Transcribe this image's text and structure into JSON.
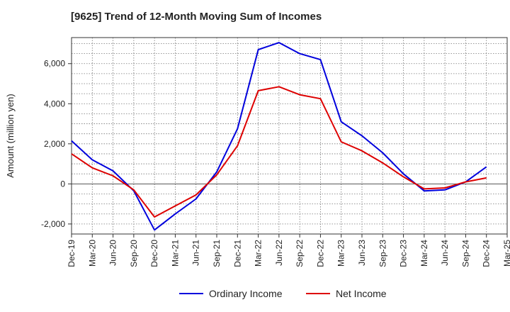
{
  "chart_data": {
    "type": "line",
    "title": "[9625]  Trend of 12-Month Moving Sum of Incomes",
    "xlabel": "",
    "ylabel": "Amount (million yen)",
    "ylim": [
      -2500,
      7300
    ],
    "yticks": [
      -2000,
      0,
      2000,
      4000,
      6000
    ],
    "ytick_labels": [
      "-2,000",
      "0",
      "2,000",
      "4,000",
      "6,000"
    ],
    "categories": [
      "Dec-19",
      "Mar-20",
      "Jun-20",
      "Sep-20",
      "Dec-20",
      "Mar-21",
      "Jun-21",
      "Sep-21",
      "Dec-21",
      "Mar-22",
      "Jun-22",
      "Sep-22",
      "Dec-22",
      "Mar-23",
      "Jun-23",
      "Sep-23",
      "Dec-23",
      "Mar-24",
      "Jun-24",
      "Sep-24",
      "Dec-24",
      "Mar-25"
    ],
    "grid": true,
    "legend_position": "bottom",
    "series": [
      {
        "name": "Ordinary Income",
        "color": "#0000dd",
        "values": [
          2150,
          1200,
          650,
          -350,
          -2300,
          -1500,
          -750,
          600,
          2750,
          6700,
          7050,
          6500,
          6200,
          3100,
          2400,
          1550,
          500,
          -350,
          -300,
          100,
          850,
          null
        ]
      },
      {
        "name": "Net Income",
        "color": "#dd0000",
        "values": [
          1500,
          800,
          400,
          -300,
          -1650,
          -1100,
          -550,
          450,
          1900,
          4650,
          4850,
          4450,
          4250,
          2100,
          1650,
          1050,
          350,
          -250,
          -200,
          100,
          300,
          null
        ]
      }
    ]
  }
}
